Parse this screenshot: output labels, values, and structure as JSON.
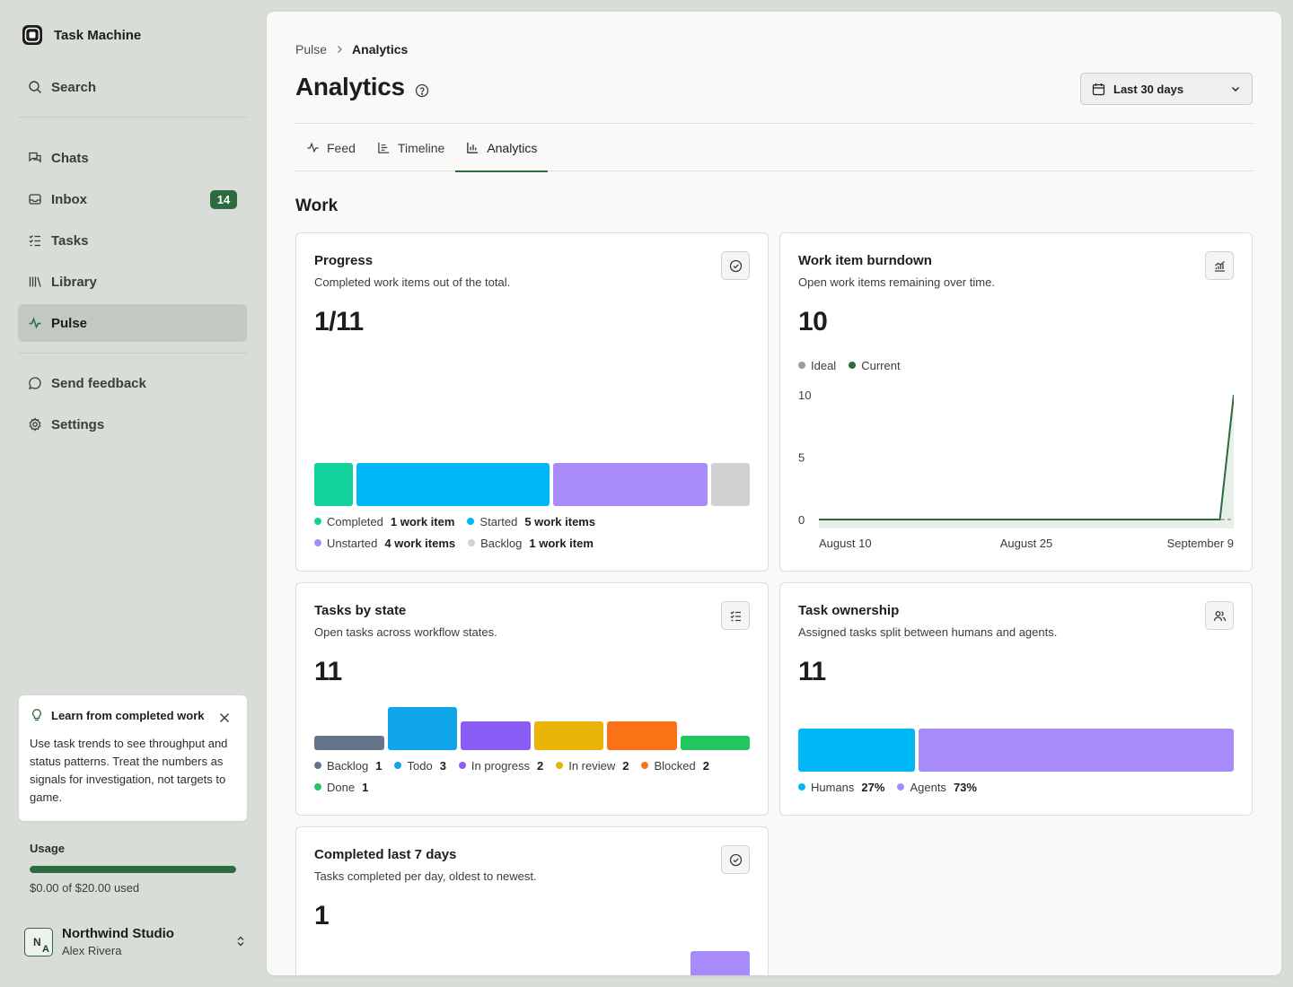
{
  "app": {
    "name": "Task Machine"
  },
  "sidebar": {
    "search_label": "Search",
    "items": [
      {
        "label": "Chats",
        "icon": "chats-icon"
      },
      {
        "label": "Inbox",
        "icon": "inbox-icon",
        "badge": "14"
      },
      {
        "label": "Tasks",
        "icon": "tasks-icon"
      },
      {
        "label": "Library",
        "icon": "library-icon"
      },
      {
        "label": "Pulse",
        "icon": "pulse-icon",
        "active": true
      }
    ],
    "feedback_label": "Send feedback",
    "settings_label": "Settings",
    "tip": {
      "title": "Learn from completed work",
      "body": "Use task trends to see throughput and status patterns. Treat the numbers as signals for investigation, not targets to game."
    },
    "usage": {
      "label": "Usage",
      "text": "$0.00 of $20.00 used",
      "fill_fraction": 1.0
    },
    "workspace": {
      "initial_1": "N",
      "initial_2": "A",
      "name": "Northwind Studio",
      "user": "Alex Rivera"
    }
  },
  "header": {
    "breadcrumb_parent": "Pulse",
    "breadcrumb_current": "Analytics",
    "title": "Analytics",
    "date_range": "Last 30 days"
  },
  "tabs": [
    {
      "label": "Feed",
      "icon": "activity-icon"
    },
    {
      "label": "Timeline",
      "icon": "timeline-icon"
    },
    {
      "label": "Analytics",
      "icon": "bar-chart-icon",
      "active": true
    }
  ],
  "section": {
    "title": "Work"
  },
  "cards": {
    "progress": {
      "title": "Progress",
      "subtitle": "Completed work items out of the total.",
      "metric": "1/11",
      "legend": [
        {
          "label": "Completed",
          "value": "1 work item",
          "color": "#10d29a"
        },
        {
          "label": "Started",
          "value": "5 work items",
          "color": "#00b8f5"
        },
        {
          "label": "Unstarted",
          "value": "4 work items",
          "color": "#a78bfa"
        },
        {
          "label": "Backlog",
          "value": "1 work item",
          "color": "#d1d1d1"
        }
      ]
    },
    "burndown": {
      "title": "Work item burndown",
      "subtitle": "Open work items remaining over time.",
      "metric": "10",
      "legend": [
        {
          "label": "Ideal",
          "color": "#9a9d9a"
        },
        {
          "label": "Current",
          "color": "#2c6b3f"
        }
      ]
    },
    "tasks_by_state": {
      "title": "Tasks by state",
      "subtitle": "Open tasks across workflow states.",
      "metric": "11",
      "legend": [
        {
          "label": "Backlog",
          "value": "1",
          "color": "#64748b"
        },
        {
          "label": "Todo",
          "value": "3",
          "color": "#0ea5e9"
        },
        {
          "label": "In progress",
          "value": "2",
          "color": "#8b5cf6"
        },
        {
          "label": "In review",
          "value": "2",
          "color": "#eab308"
        },
        {
          "label": "Blocked",
          "value": "2",
          "color": "#f97316"
        },
        {
          "label": "Done",
          "value": "1",
          "color": "#22c55e"
        }
      ]
    },
    "ownership": {
      "title": "Task ownership",
      "subtitle": "Assigned tasks split between humans and agents.",
      "metric": "11",
      "legend": [
        {
          "label": "Humans",
          "value": "27%",
          "color": "#00b8f5"
        },
        {
          "label": "Agents",
          "value": "73%",
          "color": "#a78bfa"
        }
      ]
    },
    "completed7": {
      "title": "Completed last 7 days",
      "subtitle": "Tasks completed per day, oldest to newest.",
      "metric": "1"
    }
  },
  "chart_data": [
    {
      "type": "bar",
      "stacked_horizontal": true,
      "categories": [
        "Completed",
        "Started",
        "Unstarted",
        "Backlog"
      ],
      "values": [
        1,
        5,
        4,
        1
      ],
      "colors": [
        "#10d29a",
        "#00b8f5",
        "#a78bfa",
        "#d1d1d1"
      ]
    },
    {
      "type": "line",
      "title": "Work item burndown",
      "x_ticks": [
        "August 10",
        "August 25",
        "September 9"
      ],
      "y_ticks": [
        0,
        5,
        10
      ],
      "ylim": [
        0,
        10
      ],
      "series": [
        {
          "name": "Ideal",
          "color": "#9a9d9a",
          "x": [
            0,
            30
          ],
          "values": [
            0,
            0
          ]
        },
        {
          "name": "Current",
          "color": "#2c6b3f",
          "x": [
            0,
            29,
            30
          ],
          "values": [
            0,
            0,
            10
          ]
        }
      ]
    },
    {
      "type": "bar",
      "categories": [
        "Backlog",
        "Todo",
        "In progress",
        "In review",
        "Blocked",
        "Done"
      ],
      "values": [
        1,
        3,
        2,
        2,
        2,
        1
      ],
      "colors": [
        "#64748b",
        "#0ea5e9",
        "#8b5cf6",
        "#eab308",
        "#f97316",
        "#22c55e"
      ]
    },
    {
      "type": "bar",
      "stacked_horizontal": true,
      "categories": [
        "Humans",
        "Agents"
      ],
      "values": [
        27,
        73
      ],
      "colors": [
        "#00b8f5",
        "#a78bfa"
      ]
    },
    {
      "type": "bar",
      "values": [
        0,
        0,
        0,
        0,
        0,
        0,
        1
      ],
      "colors": [
        "#a78bfa"
      ]
    }
  ]
}
